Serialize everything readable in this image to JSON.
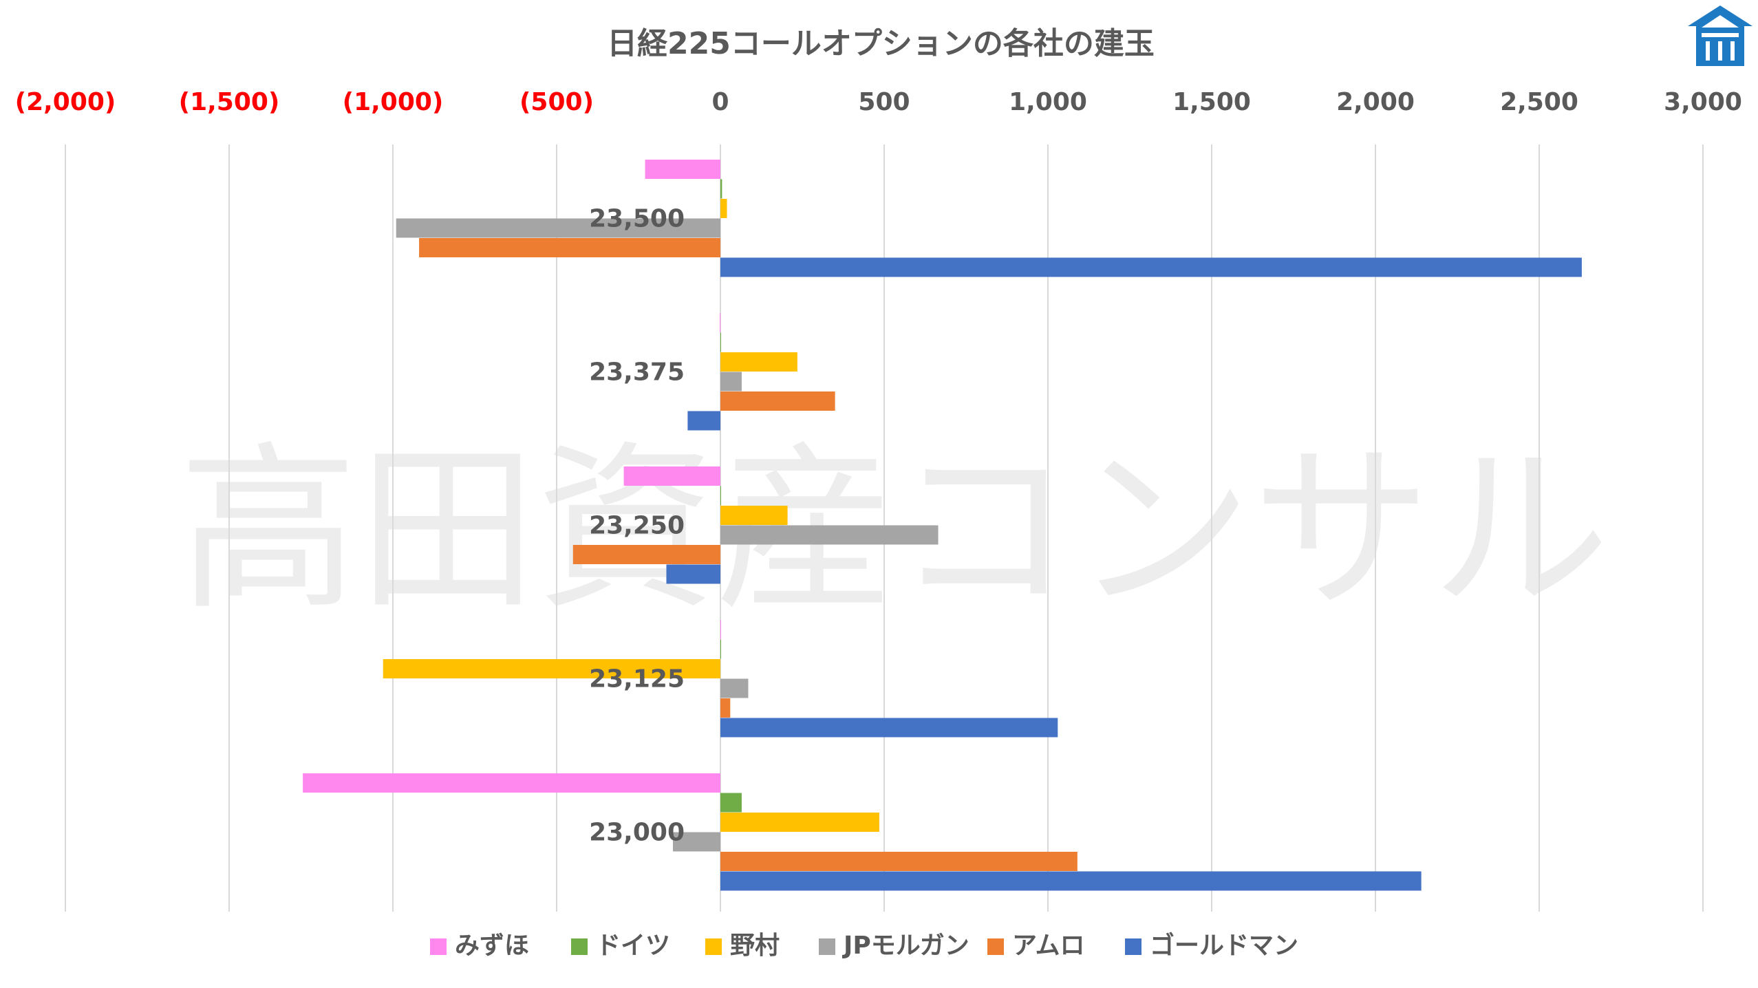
{
  "chart_data": {
    "type": "bar",
    "orientation": "horizontal",
    "title": "日経225コールオプションの各社の建玉",
    "watermark": "高田資産コンサル",
    "logo": "company-logo-icon",
    "xlim": [
      -2000,
      3000
    ],
    "x_ticks": [
      -2000,
      -1500,
      -1000,
      -500,
      0,
      500,
      1000,
      1500,
      2000,
      2500,
      3000
    ],
    "x_tick_labels": [
      "(2,000)",
      "(1,500)",
      "(1,000)",
      "(500)",
      "0",
      "500",
      "1,000",
      "1,500",
      "2,000",
      "2,500",
      "3,000"
    ],
    "negative_tick_color": "#ff0000",
    "positive_tick_color": "#595959",
    "grid": true,
    "legend_position": "bottom",
    "categories": [
      "23,500",
      "23,375",
      "23,250",
      "23,125",
      "23,000"
    ],
    "series": [
      {
        "name": "みずほ",
        "color": "#ff88ee",
        "values": [
          -230,
          -2,
          -295,
          0,
          -1275
        ]
      },
      {
        "name": "ドイツ",
        "color": "#70ad47",
        "values": [
          5,
          0,
          0,
          0,
          65
        ]
      },
      {
        "name": "野村",
        "color": "#ffc000",
        "values": [
          20,
          235,
          205,
          -1030,
          485
        ]
      },
      {
        "name": "JPモルガン",
        "color": "#a5a5a5",
        "values": [
          -990,
          65,
          665,
          85,
          -145
        ]
      },
      {
        "name": "アムロ",
        "color": "#ed7d31",
        "values": [
          -920,
          350,
          -450,
          30,
          1090
        ]
      },
      {
        "name": "ゴールドマン",
        "color": "#4472c4",
        "values": [
          2630,
          -100,
          -165,
          1030,
          2140
        ]
      }
    ]
  }
}
